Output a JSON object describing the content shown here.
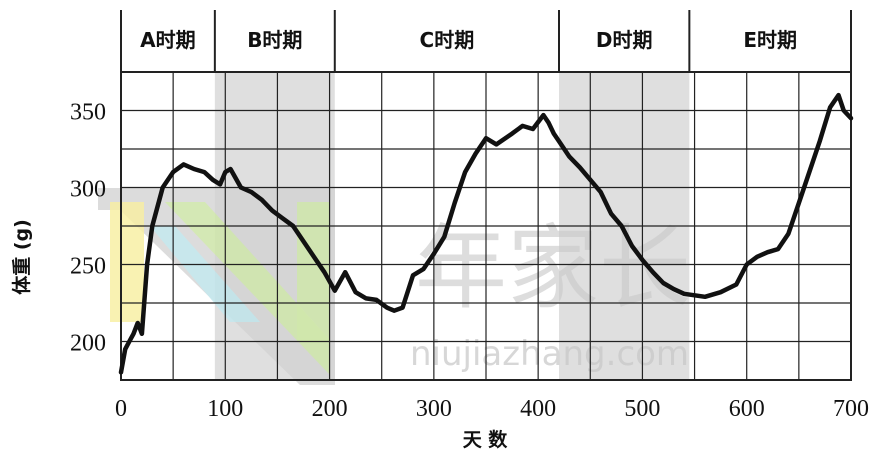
{
  "watermark": {
    "cn": "年家长",
    "latin": "niujiazhang.com"
  },
  "chart_data": {
    "type": "line",
    "xlabel": "天 数",
    "ylabel": "体重 (g)",
    "xlim": [
      0,
      700
    ],
    "ylim": [
      175,
      375
    ],
    "x_ticks": [
      "0",
      "100",
      "200",
      "300",
      "400",
      "500",
      "600",
      "700"
    ],
    "y_ticks": [
      "200",
      "250",
      "300",
      "350"
    ],
    "grid": true,
    "periods": [
      {
        "label": "A时期",
        "start": 0,
        "end": 90,
        "shaded": false
      },
      {
        "label": "B时期",
        "start": 90,
        "end": 205,
        "shaded": true
      },
      {
        "label": "C时期",
        "start": 205,
        "end": 420,
        "shaded": false
      },
      {
        "label": "D时期",
        "start": 420,
        "end": 545,
        "shaded": true
      },
      {
        "label": "E时期",
        "start": 545,
        "end": 700,
        "shaded": false
      }
    ],
    "series": [
      {
        "line_color": "#111111",
        "x": [
          0,
          4,
          8,
          12,
          16,
          20,
          25,
          30,
          40,
          50,
          60,
          70,
          80,
          88,
          95,
          100,
          105,
          115,
          125,
          135,
          145,
          155,
          165,
          175,
          185,
          195,
          205,
          215,
          225,
          235,
          245,
          255,
          262,
          270,
          280,
          290,
          300,
          310,
          320,
          330,
          340,
          350,
          360,
          375,
          385,
          395,
          405,
          410,
          415,
          420,
          430,
          440,
          450,
          460,
          470,
          480,
          490,
          500,
          510,
          520,
          530,
          540,
          550,
          560,
          575,
          590,
          600,
          610,
          620,
          630,
          640,
          650,
          660,
          670,
          680,
          688,
          693,
          700
        ],
        "y": [
          180,
          195,
          200,
          205,
          212,
          205,
          250,
          275,
          300,
          310,
          315,
          312,
          310,
          305,
          302,
          310,
          312,
          300,
          297,
          292,
          285,
          280,
          275,
          265,
          255,
          245,
          233,
          245,
          232,
          228,
          227,
          222,
          220,
          222,
          243,
          247,
          257,
          268,
          290,
          310,
          322,
          332,
          328,
          335,
          340,
          338,
          347,
          342,
          335,
          330,
          320,
          313,
          305,
          297,
          283,
          275,
          262,
          253,
          245,
          238,
          234,
          231,
          230,
          229,
          232,
          237,
          250,
          255,
          258,
          260,
          270,
          290,
          310,
          330,
          352,
          360,
          350,
          345
        ]
      }
    ]
  },
  "style": {
    "plot_bg": "#ffffff",
    "shade_color": "#d4d4d4",
    "grid_color": "#222222",
    "line_color": "#111111",
    "watermark_gray": "#c9c9c9",
    "watermark_yellow": "#f7ed9a",
    "watermark_cyan": "#bfe8ef",
    "watermark_green": "#cfe9a6"
  }
}
